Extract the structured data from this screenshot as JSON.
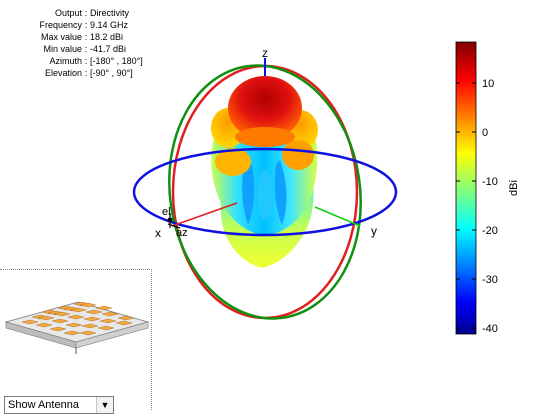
{
  "info": {
    "rows": [
      {
        "key": "Output",
        "value": "Directivity"
      },
      {
        "key": "Frequency",
        "value": "9.14 GHz"
      },
      {
        "key": "Max value",
        "value": "18.2 dBi"
      },
      {
        "key": "Min value",
        "value": "-41.7 dBi"
      },
      {
        "key": "Azimuth",
        "value": "[-180° , 180°]"
      },
      {
        "key": "Elevation",
        "value": "[-90° , 90°]"
      }
    ]
  },
  "axes": {
    "z_label": "z",
    "x_label": "x",
    "y_label": "y",
    "el_label": "el",
    "az_label": "az"
  },
  "colorbar": {
    "label": "dBi",
    "ticks": [
      "10",
      "0",
      "-10",
      "-20",
      "-30",
      "-40"
    ]
  },
  "dropdown": {
    "selected": "Show Antenna"
  },
  "colors": {
    "azimuth_ring": "#1010e0",
    "elevation_ring_red": "#e02020",
    "elevation_ring_green": "#109010"
  }
}
